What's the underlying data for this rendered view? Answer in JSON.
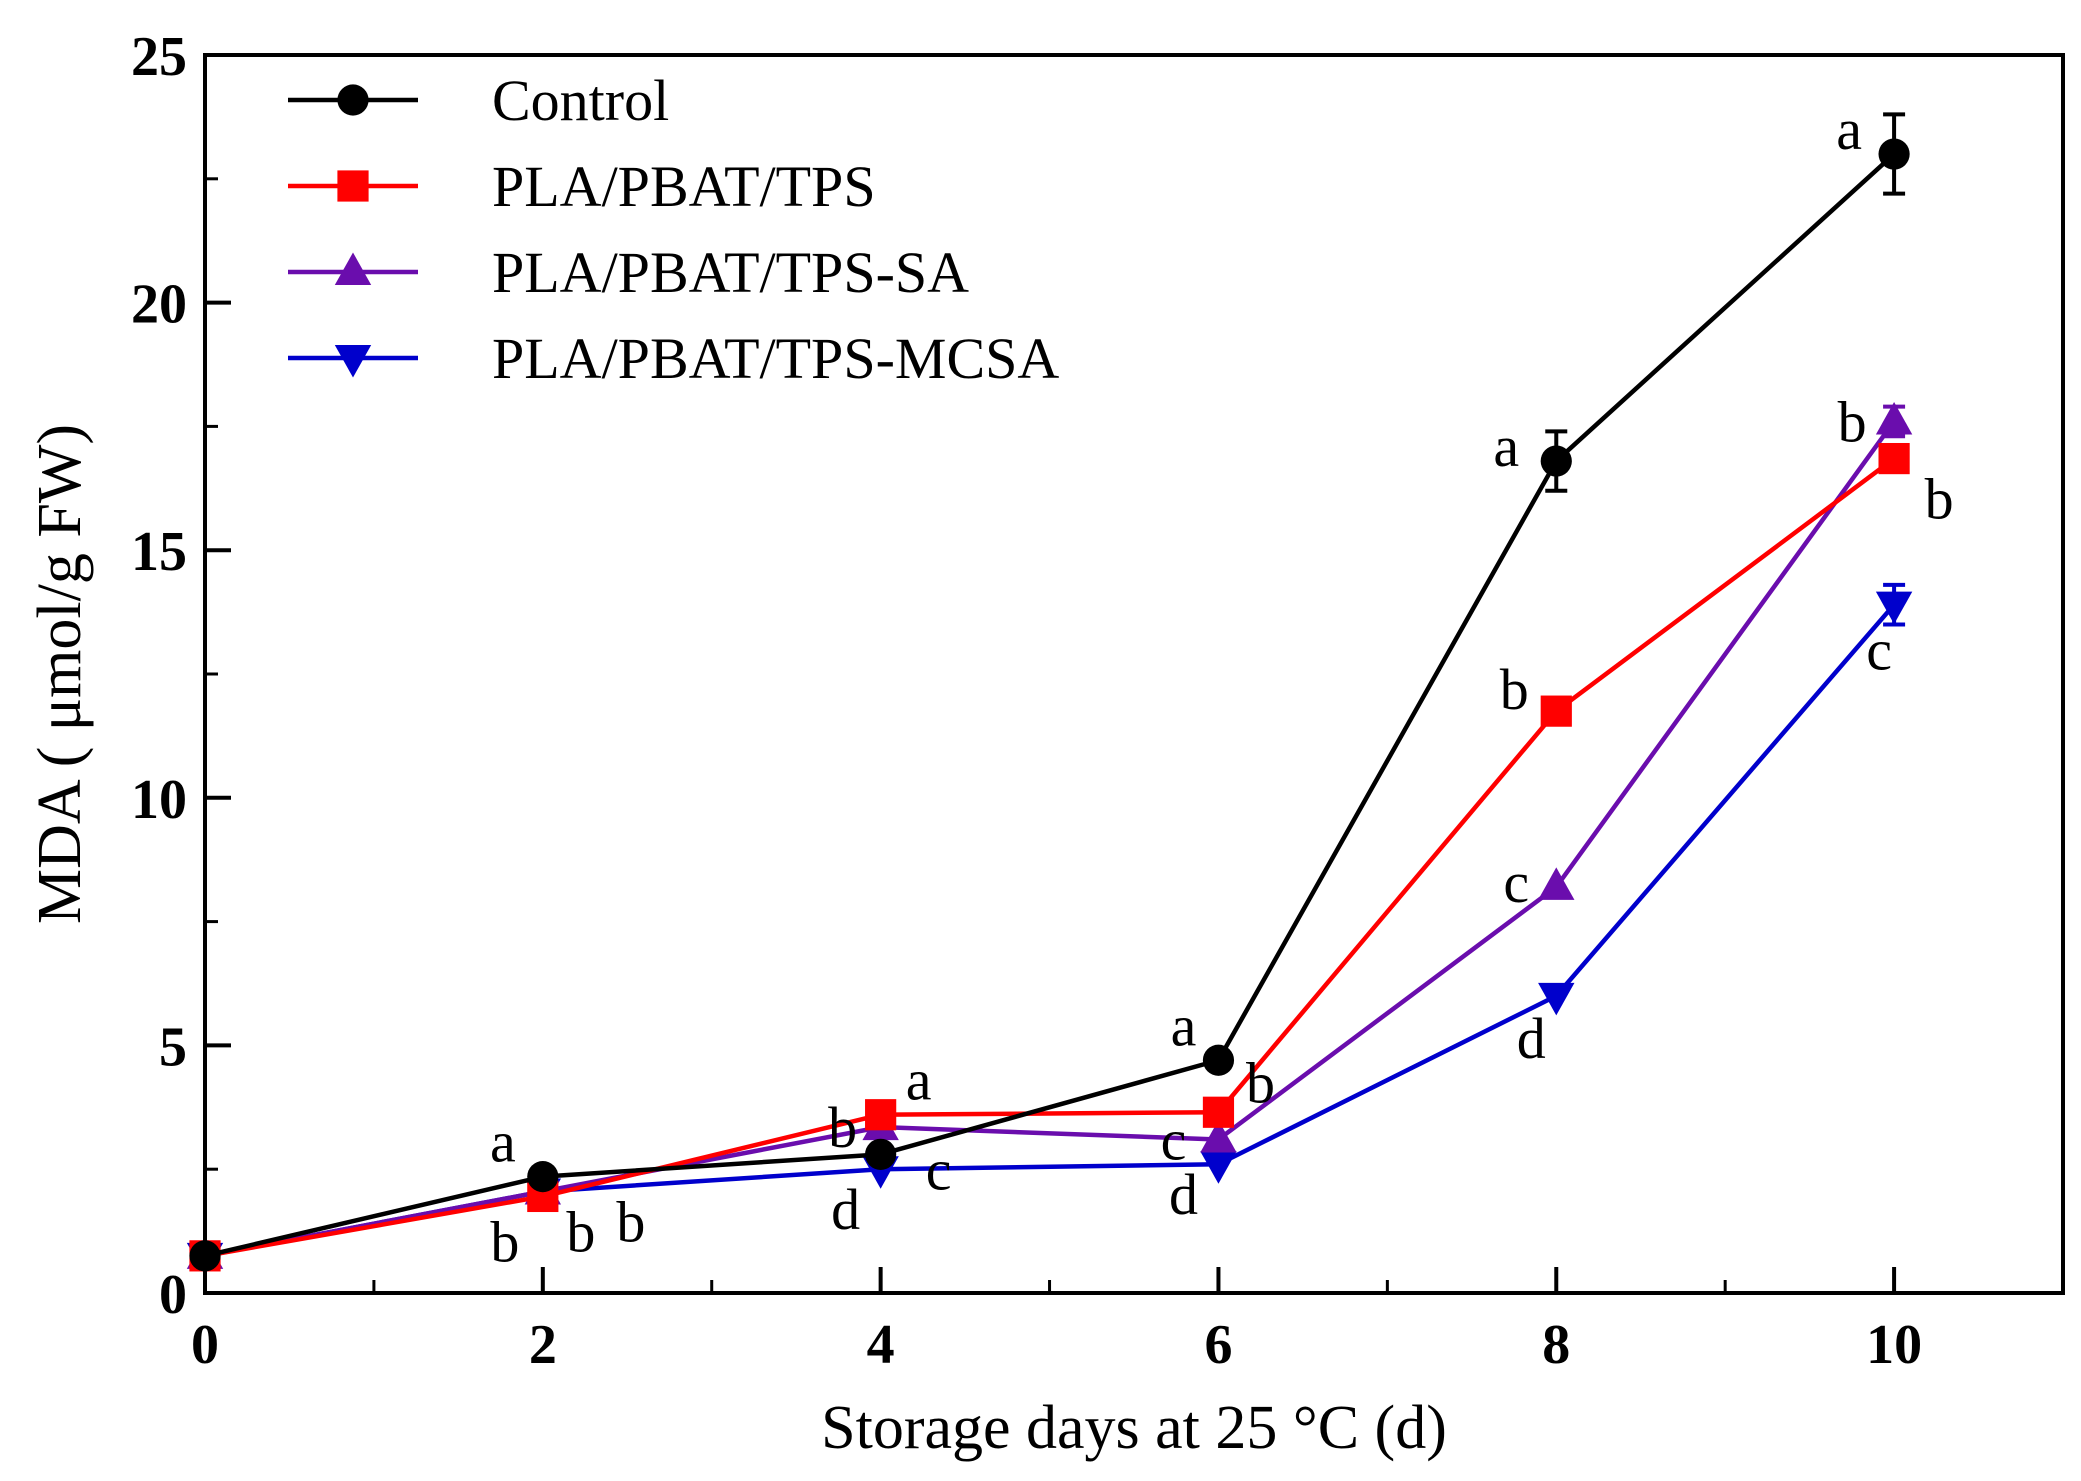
{
  "chart_data": {
    "type": "line",
    "title": "",
    "xlabel": "Storage days at 25 °C (d)",
    "ylabel": "MDA ( μmol/g FW)",
    "xlim": [
      0,
      11
    ],
    "ylim": [
      0,
      25
    ],
    "x_ticks": [
      "0",
      "2",
      "4",
      "6",
      "8",
      "10"
    ],
    "y_ticks": [
      "0",
      "5",
      "10",
      "15",
      "20",
      "25"
    ],
    "legend_position": "top-left",
    "x": [
      0,
      2,
      4,
      6,
      8,
      10
    ],
    "series": [
      {
        "name": "Control",
        "color": "#000000",
        "marker": "circle",
        "values": [
          0.75,
          2.35,
          2.8,
          4.7,
          16.8,
          23.0
        ],
        "errors": [
          0,
          0,
          0,
          0,
          0.6,
          0.8
        ],
        "letters": [
          "",
          "a",
          "c",
          "a",
          "a",
          "a"
        ]
      },
      {
        "name": "PLA/PBAT/TPS",
        "color": "#ff0000",
        "marker": "square",
        "values": [
          0.75,
          1.95,
          3.6,
          3.65,
          11.75,
          16.85
        ],
        "errors": [
          0,
          0,
          0,
          0,
          0,
          0
        ],
        "letters": [
          "",
          "b",
          "a",
          "b",
          "b",
          "b"
        ]
      },
      {
        "name": "PLA/PBAT/TPS-SA",
        "color": "#6a0dad",
        "marker": "triangle-up",
        "values": [
          0.75,
          2.05,
          3.35,
          3.1,
          8.2,
          17.6
        ],
        "errors": [
          0,
          0,
          0,
          0,
          0,
          0.3
        ],
        "letters": [
          "",
          "b",
          "b",
          "c",
          "c",
          "b"
        ]
      },
      {
        "name": "PLA/PBAT/TPS-MCSA",
        "color": "#0000cc",
        "marker": "triangle-down",
        "values": [
          0.75,
          2.05,
          2.5,
          2.6,
          6.0,
          13.9
        ],
        "errors": [
          0,
          0,
          0,
          0,
          0,
          0.4
        ],
        "letters": [
          "",
          "b",
          "d",
          "d",
          "d",
          "c"
        ]
      }
    ]
  }
}
